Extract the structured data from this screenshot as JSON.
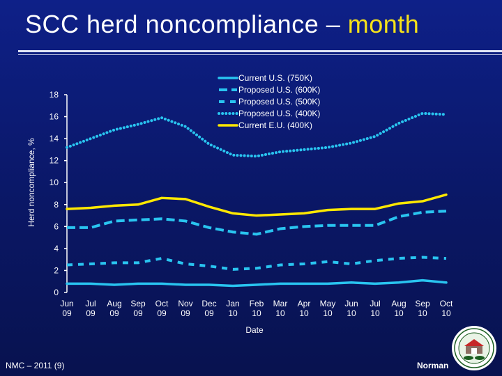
{
  "slide": {
    "title_main": "SCC herd noncompliance – ",
    "title_accent": "month",
    "footer_left": "NMC – 2011 (9)",
    "footer_right": "Norman",
    "seal_icon": "aipl-usda-seal-icon"
  },
  "colors": {
    "background": "#0b1a6b",
    "accent": "#f5e21a",
    "series_blue": "#29c4f0",
    "series_yellow": "#ffe800",
    "text": "#ffffff"
  },
  "chart_data": {
    "type": "line",
    "title": "",
    "xlabel": "Date",
    "ylabel": "Herd noncompliance, %",
    "ylim": [
      0,
      18
    ],
    "yticks": [
      "0",
      "2",
      "4",
      "6",
      "8",
      "10",
      "12",
      "14",
      "16",
      "18"
    ],
    "categories": [
      [
        "Jun",
        "09"
      ],
      [
        "Jul",
        "09"
      ],
      [
        "Aug",
        "09"
      ],
      [
        "Sep",
        "09"
      ],
      [
        "Oct",
        "09"
      ],
      [
        "Nov",
        "09"
      ],
      [
        "Dec",
        "09"
      ],
      [
        "Jan",
        "10"
      ],
      [
        "Feb",
        "10"
      ],
      [
        "Mar",
        "10"
      ],
      [
        "Apr",
        "10"
      ],
      [
        "May",
        "10"
      ],
      [
        "Jun",
        "10"
      ],
      [
        "Jul",
        "10"
      ],
      [
        "Aug",
        "10"
      ],
      [
        "Sep",
        "10"
      ],
      [
        "Oct",
        "10"
      ]
    ],
    "legend_position": "top-right",
    "series": [
      {
        "name": "Current U.S. (750K)",
        "style": "solid",
        "color": "#29c4f0",
        "values": [
          0.8,
          0.8,
          0.7,
          0.8,
          0.8,
          0.7,
          0.7,
          0.6,
          0.7,
          0.8,
          0.8,
          0.8,
          0.9,
          0.8,
          0.9,
          1.1,
          0.9
        ]
      },
      {
        "name": "Proposed U.S. (600K)",
        "style": "long-dash",
        "color": "#29c4f0",
        "values": [
          5.9,
          5.9,
          6.5,
          6.6,
          6.7,
          6.5,
          5.9,
          5.5,
          5.3,
          5.8,
          6.0,
          6.1,
          6.1,
          6.1,
          6.9,
          7.3,
          7.4
        ]
      },
      {
        "name": "Proposed U.S. (500K)",
        "style": "dash",
        "color": "#29c4f0",
        "values": [
          2.5,
          2.6,
          2.7,
          2.7,
          3.1,
          2.6,
          2.4,
          2.1,
          2.2,
          2.5,
          2.6,
          2.8,
          2.6,
          2.9,
          3.1,
          3.2,
          3.1
        ]
      },
      {
        "name": "Proposed U.S. (400K)",
        "style": "dotted",
        "color": "#29c4f0",
        "values": [
          13.2,
          14.0,
          14.8,
          15.3,
          15.9,
          15.1,
          13.5,
          12.5,
          12.4,
          12.8,
          13.0,
          13.2,
          13.6,
          14.2,
          15.4,
          16.3,
          16.2
        ]
      },
      {
        "name": "Current E.U. (400K)",
        "style": "solid",
        "color": "#ffe800",
        "values": [
          7.6,
          7.7,
          7.9,
          8.0,
          8.6,
          8.5,
          7.8,
          7.2,
          7.0,
          7.1,
          7.2,
          7.5,
          7.6,
          7.6,
          8.1,
          8.3,
          8.9
        ]
      }
    ]
  }
}
